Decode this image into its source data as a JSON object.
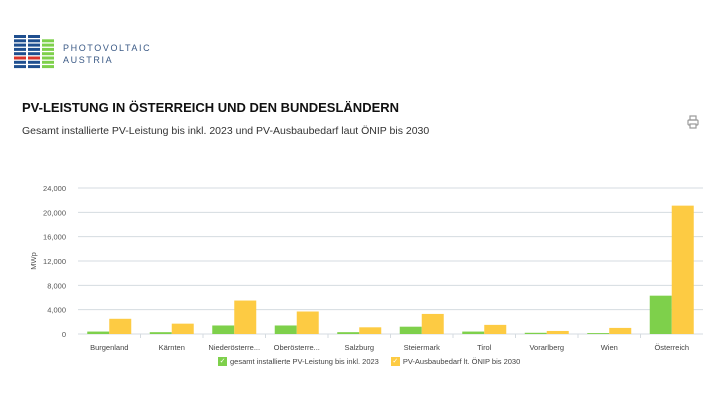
{
  "header": {
    "brand_line1": "PHOTOVOLTAIC",
    "brand_line2": "AUSTRIA",
    "print_icon": "printer-icon"
  },
  "colors": {
    "green": "#7ed04b",
    "yellow": "#fdcb43",
    "grid": "#d5dbe0",
    "brand": "#3b5a86"
  },
  "chart_data": {
    "type": "bar",
    "title": "PV-LEISTUNG IN ÖSTERREICH UND DEN BUNDESLÄNDERN",
    "subtitle": "Gesamt installierte PV-Leistung bis inkl. 2023 und PV-Ausbaubedarf laut ÖNIP bis 2030",
    "xlabel": "",
    "ylabel": "MWp",
    "ylim": [
      0,
      24000
    ],
    "yticks": [
      "0",
      "4,000",
      "8,000",
      "12,000",
      "16,000",
      "20,000",
      "24,000"
    ],
    "grid": true,
    "legend": "bottom",
    "categories": [
      "Burgenland",
      "Kärnten",
      "Niederösterre...",
      "Oberösterre...",
      "Salzburg",
      "Steiermark",
      "Tirol",
      "Vorarlberg",
      "Wien",
      "Österreich"
    ],
    "series": [
      {
        "name": "gesamt installierte PV-Leistung bis inkl. 2023",
        "color": "#7ed04b",
        "values": [
          400,
          300,
          1400,
          1400,
          300,
          1200,
          400,
          200,
          150,
          6300
        ]
      },
      {
        "name": "PV-Ausbaubedarf lt. ÖNIP bis 2030",
        "color": "#fdcb43",
        "values": [
          2500,
          1700,
          5500,
          3700,
          1100,
          3300,
          1500,
          500,
          1000,
          21100
        ]
      }
    ]
  }
}
